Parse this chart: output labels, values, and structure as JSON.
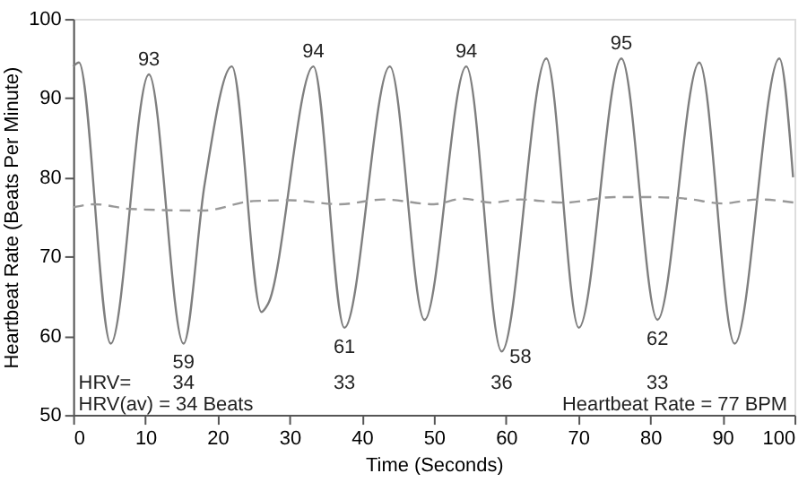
{
  "chart_data": {
    "type": "line",
    "xlabel": "Time (Seconds)",
    "ylabel": "Heartbeat Rate (Beats Per Minute)",
    "xlim": [
      0,
      100
    ],
    "ylim": [
      50,
      100
    ],
    "xticks": [
      0,
      10,
      20,
      30,
      40,
      50,
      60,
      70,
      80,
      90,
      100
    ],
    "yticks": [
      50,
      60,
      70,
      80,
      90,
      100
    ],
    "grid": false,
    "marker": "none",
    "series": [
      {
        "color": "#7f7f7f",
        "line_style": "solid",
        "x": [
          0,
          0.8,
          5.2,
          10.5,
          15.3,
          18.2,
          22,
          26.1,
          27,
          33.3,
          37.6,
          43.9,
          48.7,
          54.5,
          59.4,
          65.6,
          70.1,
          76,
          81,
          86.8,
          91.7,
          97.9,
          99.8
        ],
        "values": [
          94,
          94.5,
          59,
          93,
          59,
          79,
          94,
          63,
          64,
          94,
          61,
          94,
          62,
          94,
          58,
          95,
          61,
          95,
          62,
          94.5,
          59,
          95,
          80
        ]
      },
      {
        "color": "#999999",
        "line_style": "dashed",
        "x": [
          0,
          3,
          8,
          18,
          25,
          30,
          37,
          43,
          50,
          54,
          58,
          62,
          68,
          75,
          80,
          85,
          90,
          95,
          100
        ],
        "values": [
          76.2,
          76.6,
          76,
          75.8,
          77,
          77.1,
          76.6,
          77.2,
          76.6,
          77.3,
          76.8,
          77.2,
          76.8,
          77.5,
          77.5,
          77.3,
          76.7,
          77.2,
          76.8
        ]
      }
    ],
    "annotations": [
      {
        "text": "93",
        "x": 10.5,
        "y": 93
      },
      {
        "text": "59",
        "x": 15.3,
        "y": 59
      },
      {
        "text": "94",
        "x": 33.3,
        "y": 94
      },
      {
        "text": "61",
        "x": 37.6,
        "y": 61
      },
      {
        "text": "94",
        "x": 54.5,
        "y": 94
      },
      {
        "text": "95",
        "x": 76,
        "y": 95
      },
      {
        "text": "62",
        "x": 81,
        "y": 62
      },
      "58",
      "34",
      "33",
      "36",
      "33",
      "HRV=",
      "HRV(av) = 34 Beats",
      "Heartbeat Rate = 77 BPM"
    ]
  }
}
